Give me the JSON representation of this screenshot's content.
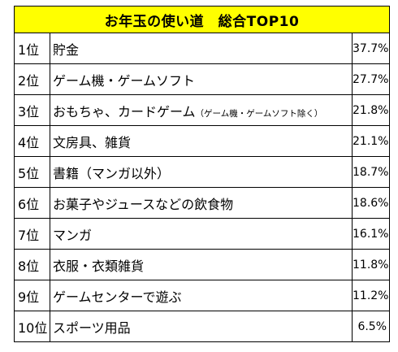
{
  "chart_data": {
    "type": "table",
    "title": "お年玉の使い道　総合TOP10",
    "rows": [
      {
        "rank": "1位",
        "item": "貯金",
        "note": "",
        "value_label": "37.7%",
        "value": 37.7
      },
      {
        "rank": "2位",
        "item": "ゲーム機・ゲームソフト",
        "note": "",
        "value_label": "27.7%",
        "value": 27.7
      },
      {
        "rank": "3位",
        "item": "おもちゃ、カードゲーム",
        "note": "（ゲーム機・ゲームソフト除く）",
        "value_label": "21.8%",
        "value": 21.8
      },
      {
        "rank": "4位",
        "item": "文房具、雑貨",
        "note": "",
        "value_label": "21.1%",
        "value": 21.1
      },
      {
        "rank": "5位",
        "item": "書籍（マンガ以外）",
        "note": "",
        "value_label": "18.7%",
        "value": 18.7
      },
      {
        "rank": "6位",
        "item": "お菓子やジュースなどの飲食物",
        "note": "",
        "value_label": "18.6%",
        "value": 18.6
      },
      {
        "rank": "7位",
        "item": "マンガ",
        "note": "",
        "value_label": "16.1%",
        "value": 16.1
      },
      {
        "rank": "8位",
        "item": "衣服・衣類雑貨",
        "note": "",
        "value_label": "11.8%",
        "value": 11.8
      },
      {
        "rank": "9位",
        "item": "ゲームセンターで遊ぶ",
        "note": "",
        "value_label": "11.2%",
        "value": 11.2
      },
      {
        "rank": "10位",
        "item": "スポーツ用品",
        "note": "",
        "value_label": "6.5%",
        "value": 6.5
      }
    ]
  },
  "colors": {
    "title_background": "#ffff00",
    "border": "#000000",
    "text": "#000000"
  }
}
